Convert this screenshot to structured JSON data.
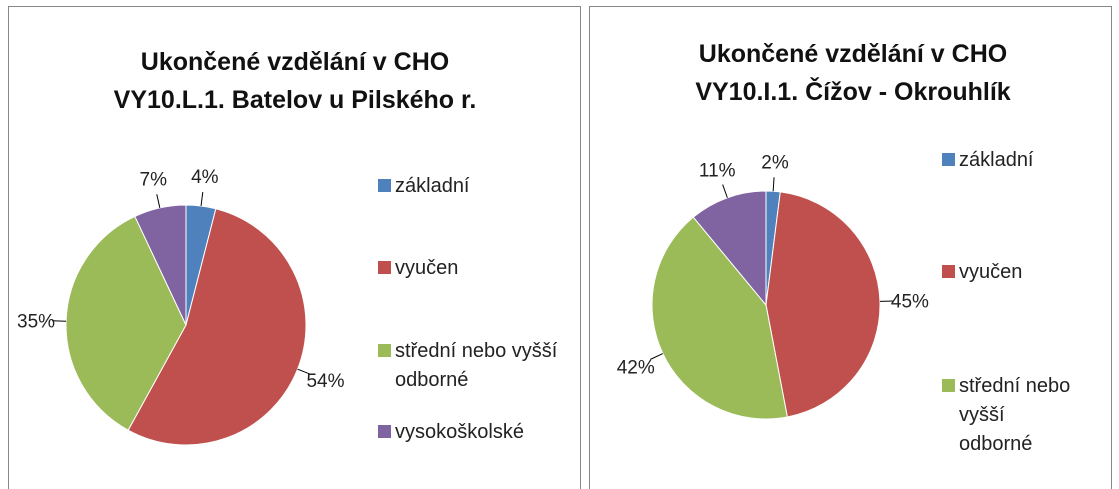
{
  "chart_data": [
    {
      "type": "pie",
      "title": [
        "Ukončené vzdělání v CHO",
        "VY10.L.1. Batelov  u Pilského r."
      ],
      "categories": [
        "základní",
        "vyučen",
        "střední nebo vyšší odborné",
        "vysokoškolské"
      ],
      "values": [
        4,
        54,
        35,
        7
      ],
      "value_labels": [
        "4%",
        "54%",
        "35%",
        "7%"
      ],
      "colors": [
        "#4f81bd",
        "#c0504d",
        "#9bbb59",
        "#8064a2"
      ],
      "legend": "right"
    },
    {
      "type": "pie",
      "title": [
        "Ukončené vzdělání v CHO",
        "VY10.I.1. Čížov - Okrouhlík"
      ],
      "categories": [
        "základní",
        "vyučen",
        "střední nebo vyšší odborné",
        null
      ],
      "values": [
        2,
        45,
        42,
        11
      ],
      "value_labels": [
        "2%",
        "45%",
        "42%",
        "11%"
      ],
      "colors": [
        "#4f81bd",
        "#c0504d",
        "#9bbb59",
        "#8064a2"
      ],
      "legend": "right"
    }
  ]
}
